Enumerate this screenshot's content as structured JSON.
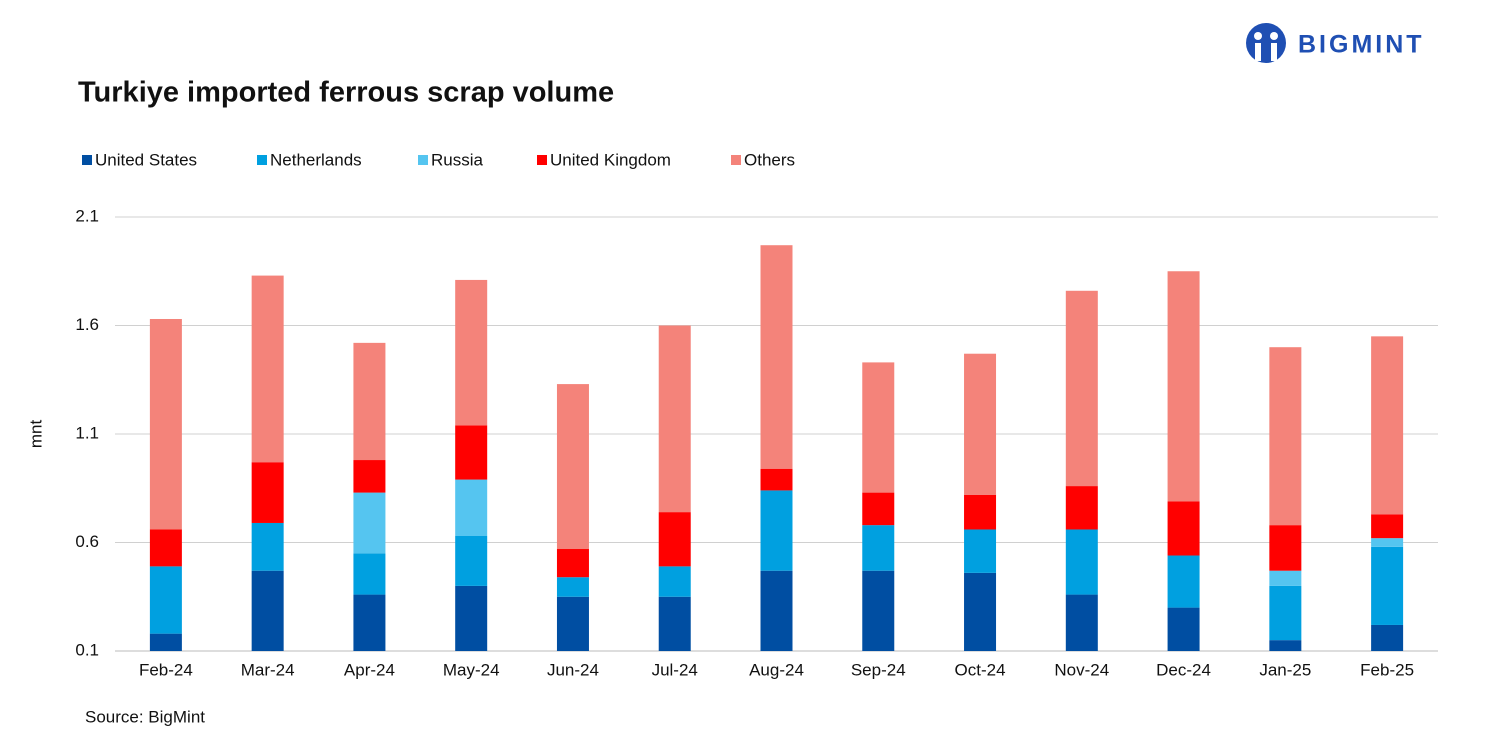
{
  "logo": "BIGMINT",
  "chart_data": {
    "type": "stacked-bar",
    "title": "Turkiye imported ferrous scrap volume",
    "y_label": "mnt",
    "source": "Source: BigMint",
    "categories": [
      "Feb-24",
      "Mar-24",
      "Apr-24",
      "May-24",
      "Jun-24",
      "Jul-24",
      "Aug-24",
      "Sep-24",
      "Oct-24",
      "Nov-24",
      "Dec-24",
      "Jan-25",
      "Feb-25"
    ],
    "series": [
      {
        "name": "United States",
        "color": "#004ea2",
        "values": [
          0.18,
          0.47,
          0.36,
          0.4,
          0.35,
          0.35,
          0.47,
          0.47,
          0.46,
          0.36,
          0.3,
          0.15,
          0.22
        ]
      },
      {
        "name": "Netherlands",
        "color": "#00a0e0",
        "values": [
          0.31,
          0.22,
          0.19,
          0.23,
          0.09,
          0.14,
          0.37,
          0.21,
          0.2,
          0.3,
          0.24,
          0.25,
          0.36
        ]
      },
      {
        "name": "Russia",
        "color": "#55c5f0",
        "values": [
          0,
          0,
          0.28,
          0.26,
          0,
          0,
          0,
          0,
          0,
          0,
          0,
          0.07,
          0.04
        ]
      },
      {
        "name": "United Kingdom",
        "color": "#ff0000",
        "values": [
          0.17,
          0.28,
          0.15,
          0.25,
          0.13,
          0.25,
          0.1,
          0.15,
          0.16,
          0.2,
          0.25,
          0.21,
          0.11
        ]
      },
      {
        "name": "Others",
        "color": "#f4837a",
        "values": [
          0.97,
          0.86,
          0.54,
          0.67,
          0.76,
          0.86,
          1.03,
          0.6,
          0.65,
          0.9,
          1.06,
          0.82,
          0.82
        ]
      }
    ],
    "ylim": [
      0.1,
      2.1
    ],
    "yticks": [
      0.1,
      0.6,
      1.1,
      1.6,
      2.1
    ],
    "grid": true,
    "legend": "top"
  }
}
